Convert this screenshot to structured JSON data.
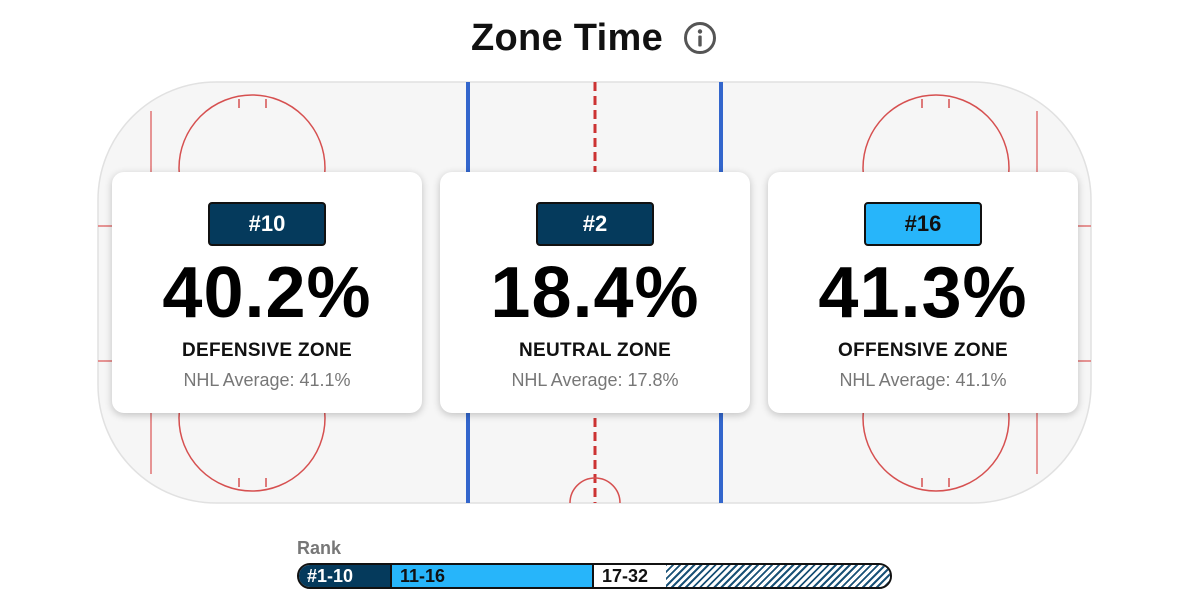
{
  "header": {
    "title": "Zone Time",
    "info_icon": "info-icon"
  },
  "colors": {
    "top_rank": "#053a5c",
    "mid_rank": "#27b5fa",
    "blue_line": "#3366cc",
    "red_line": "#cc3333"
  },
  "zones": [
    {
      "rank": "#10",
      "percentage": "40.2%",
      "name": "DEFENSIVE ZONE",
      "average": "NHL Average: 41.1%",
      "rank_tier": "top"
    },
    {
      "rank": "#2",
      "percentage": "18.4%",
      "name": "NEUTRAL ZONE",
      "average": "NHL Average: 17.8%",
      "rank_tier": "top"
    },
    {
      "rank": "#16",
      "percentage": "41.3%",
      "name": "OFFENSIVE ZONE",
      "average": "NHL Average: 41.1%",
      "rank_tier": "mid"
    }
  ],
  "legend": {
    "title": "Rank",
    "segments": [
      {
        "label": "#1-10"
      },
      {
        "label": "11-16"
      },
      {
        "label": "17-32"
      },
      {
        "label": ""
      }
    ]
  }
}
